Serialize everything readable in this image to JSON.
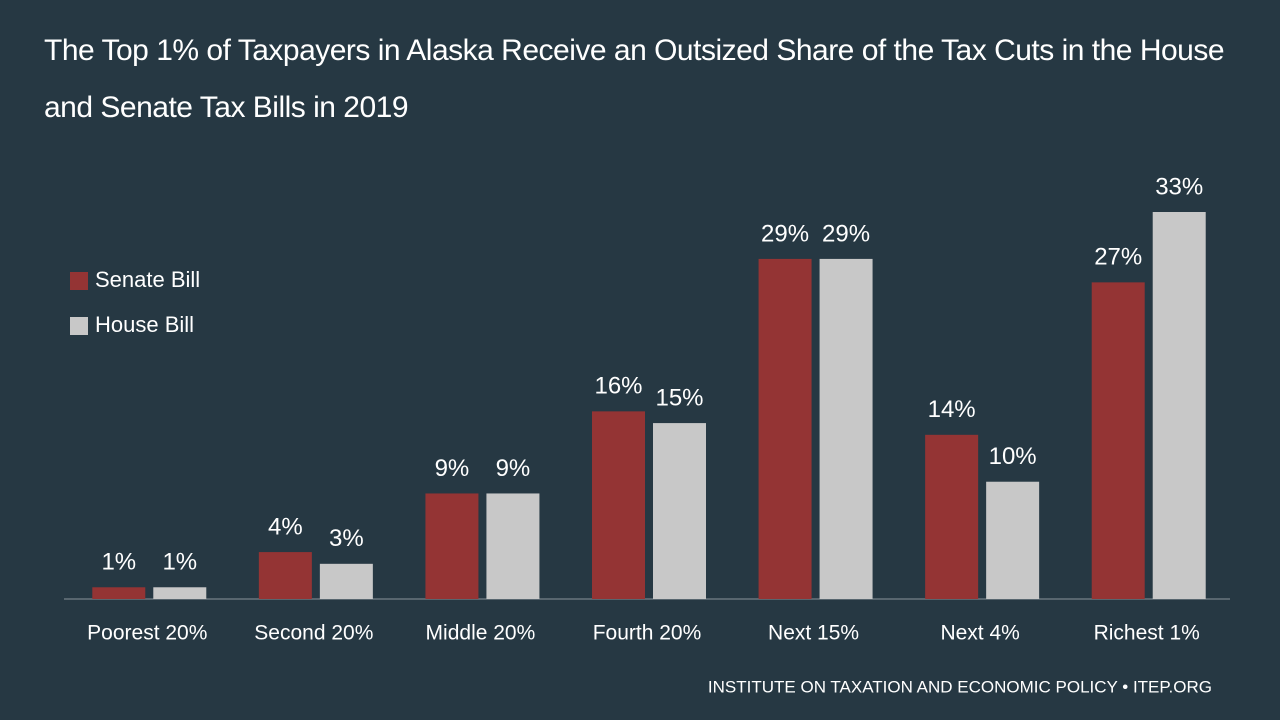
{
  "chart_data": {
    "type": "bar",
    "title": "The Top 1% of Taxpayers in Alaska Receive an Outsized Share of the Tax Cuts in the House and Senate Tax Bills in 2019",
    "categories": [
      "Poorest 20%",
      "Second 20%",
      "Middle 20%",
      "Fourth 20%",
      "Next 15%",
      "Next 4%",
      "Richest 1%"
    ],
    "series": [
      {
        "name": "Senate Bill",
        "color": "#943434",
        "values": [
          1,
          4,
          9,
          16,
          29,
          14,
          27
        ],
        "value_labels": [
          "1%",
          "4%",
          "9%",
          "16%",
          "29%",
          "14%",
          "27%"
        ]
      },
      {
        "name": "House Bill",
        "color": "#c8c8c8",
        "values": [
          1,
          3,
          9,
          15,
          29,
          10,
          33
        ],
        "value_labels": [
          "1%",
          "3%",
          "9%",
          "15%",
          "29%",
          "10%",
          "33%"
        ]
      }
    ],
    "legend": "left",
    "source": "INSTITUTE ON TAXATION AND ECONOMIC POLICY • ITEP.ORG"
  }
}
